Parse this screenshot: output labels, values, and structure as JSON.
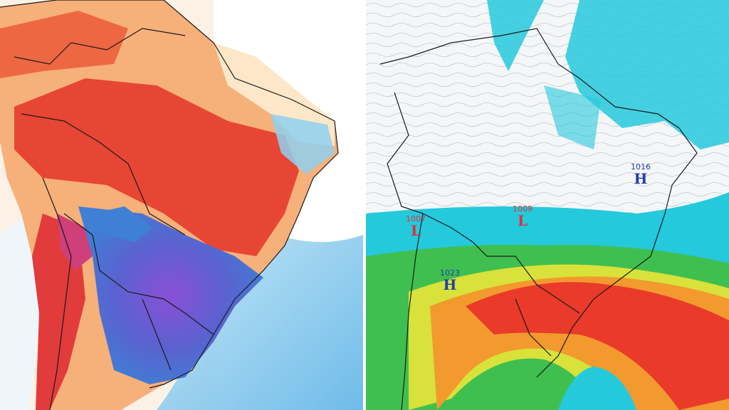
{
  "left_map": {
    "colors": {
      "ocean": "#ffffff",
      "hot": "#e63b2e",
      "warm": "#f6b07a",
      "mild": "#fde7c8",
      "cool": "#8fd0ee",
      "cold": "#3f7fd4",
      "very_cold": "#8a4fd6",
      "border": "#1a1a1a"
    }
  },
  "right_map": {
    "colors": {
      "background": "#f4f6f8",
      "cyan_band": "#25c9dc",
      "green_band": "#3fbf4f",
      "yellow_band": "#d8e23a",
      "orange_band": "#f29a2e",
      "red_core": "#ea3a2a",
      "low_color": "#d8323a",
      "high_color": "#1f3fa8",
      "border": "#1a1a1a"
    },
    "pressure_systems": [
      {
        "type": "L",
        "value": "1007",
        "color": "#d8323a"
      },
      {
        "type": "L",
        "value": "1009",
        "color": "#d8323a"
      },
      {
        "type": "H",
        "value": "1016",
        "color": "#1f3fa8"
      },
      {
        "type": "H",
        "value": "1023",
        "color": "#1f3fa8"
      }
    ]
  }
}
